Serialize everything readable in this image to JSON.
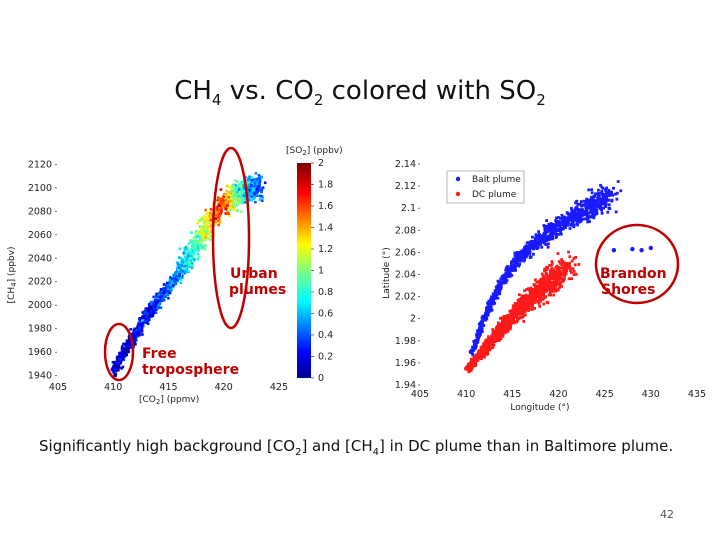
{
  "slide": {
    "title_prefix": "CH",
    "title_sub1": "4",
    "title_mid": " vs. CO",
    "title_sub2": "2",
    "title_mid2": " colored with SO",
    "title_sub3": "2",
    "caption_a": "Significantly high background [CO",
    "caption_sub1": "2",
    "caption_b": "] and [CH",
    "caption_sub2": "4",
    "caption_c": "] in DC plume than in Baltimore plume.",
    "page_number": "42"
  },
  "colors": {
    "annotation": "#c00000",
    "balt_plume": "#1a1aff",
    "dc_plume": "#ff1a1a"
  },
  "chart_data": [
    {
      "type": "scatter",
      "title": "",
      "xlabel_main": "[CO",
      "xlabel_sub": "2",
      "xlabel_tail": "] (ppmv)",
      "ylabel_main": "[CH",
      "ylabel_sub": "4",
      "ylabel_tail": "] (ppbv)",
      "xlim": [
        405,
        426
      ],
      "ylim": [
        1938,
        2122
      ],
      "xticks": [
        "405",
        "410",
        "415",
        "420",
        "425"
      ],
      "yticks": [
        "1940",
        "1960",
        "1980",
        "2000",
        "2020",
        "2040",
        "2060",
        "2080",
        "2100",
        "2120"
      ],
      "colorbar": {
        "label_main": "[SO",
        "label_sub": "2",
        "label_tail": "] (ppbv)",
        "range": [
          0,
          2
        ],
        "ticks": [
          "0",
          "0.2",
          "0.4",
          "0.6",
          "0.8",
          "1",
          "1.2",
          "1.4",
          "1.6",
          "1.8",
          "2"
        ],
        "colormap": "jet"
      },
      "series": [
        {
          "x": [
            410.0,
            410.6,
            411.2,
            411.8,
            412.3,
            412.9,
            413.5,
            414.0,
            414.6,
            415.2,
            415.8,
            416.3,
            416.9,
            417.5,
            418.1,
            418.6,
            419.2,
            419.8,
            420.3,
            420.9,
            421.5,
            422.1,
            422.6,
            423.2
          ],
          "y": [
            1945,
            1956,
            1966,
            1975,
            1983,
            1992,
            1999,
            2006,
            2013,
            2020,
            2028,
            2036,
            2045,
            2054,
            2063,
            2072,
            2079,
            2085,
            2090,
            2094,
            2097,
            2099,
            2101,
            2103
          ],
          "so2": [
            0.1,
            0.15,
            0.15,
            0.2,
            0.25,
            0.25,
            0.3,
            0.35,
            0.4,
            0.45,
            0.55,
            0.65,
            0.75,
            0.9,
            1.1,
            1.3,
            1.5,
            1.7,
            1.3,
            1.0,
            0.8,
            0.6,
            0.5,
            0.4
          ]
        }
      ],
      "annotations": [
        "Urban plumes",
        "Free troposphere"
      ]
    },
    {
      "type": "scatter",
      "title": "",
      "xlabel": "Longitude (°)",
      "ylabel": "Latitude (°)",
      "xlim": [
        405,
        435
      ],
      "ylim": [
        1.94,
        2.14
      ],
      "xticks": [
        "405",
        "410",
        "415",
        "420",
        "425",
        "430",
        "435"
      ],
      "yticks": [
        "1.94",
        "1.96",
        "1.98",
        "2",
        "2.02",
        "2.04",
        "2.06",
        "2.08",
        "2.1",
        "2.12",
        "2.14"
      ],
      "legend": "top-left",
      "series": [
        {
          "name": "Balt plume",
          "x": [
            410.5,
            411.5,
            412.5,
            413.5,
            414.5,
            415.5,
            416.5,
            417.5,
            418.5,
            419.5,
            420.5,
            421.5,
            422.5,
            423.5,
            424.5,
            425.5,
            426.0,
            428.0,
            429.0,
            430.0
          ],
          "y": [
            1.97,
            1.995,
            2.015,
            2.03,
            2.045,
            2.055,
            2.063,
            2.07,
            2.077,
            2.083,
            2.088,
            2.093,
            2.098,
            2.103,
            2.108,
            2.112,
            2.062,
            2.063,
            2.062,
            2.064
          ]
        },
        {
          "name": "DC plume",
          "x": [
            410.0,
            411.0,
            412.0,
            413.0,
            414.0,
            415.0,
            416.0,
            417.0,
            418.0,
            419.0,
            420.0,
            421.0
          ],
          "y": [
            1.955,
            1.965,
            1.975,
            1.985,
            1.995,
            2.005,
            2.013,
            2.02,
            2.027,
            2.035,
            2.042,
            2.048
          ]
        }
      ],
      "annotations": [
        "Brandon Shores"
      ]
    }
  ]
}
